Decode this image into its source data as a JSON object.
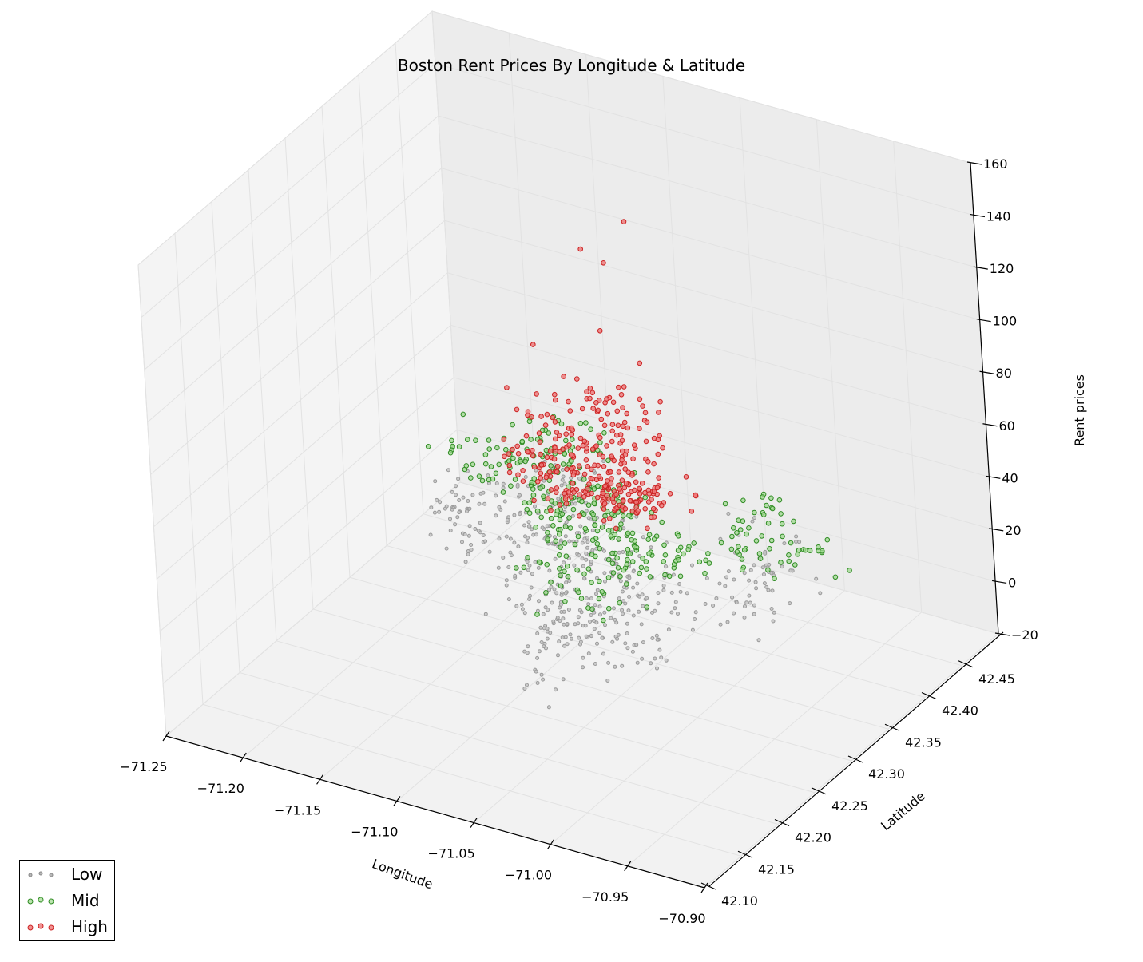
{
  "chart_data": {
    "type": "scatter",
    "projection": "3d",
    "title": "Boston Rent Prices By Longitude & Latitude",
    "xlabel": "Longitude",
    "ylabel": "Latitude",
    "zlabel": "Rent prices",
    "xlim": [
      -71.25,
      -70.9
    ],
    "ylim": [
      42.1,
      42.5
    ],
    "zlim": [
      -20,
      160
    ],
    "x_ticks": [
      "−71.25",
      "−71.20",
      "−71.15",
      "−71.10",
      "−71.05",
      "−71.00",
      "−70.95",
      "−70.90"
    ],
    "y_ticks": [
      "42.10",
      "42.15",
      "42.20",
      "42.25",
      "42.30",
      "42.35",
      "42.40",
      "42.45"
    ],
    "z_ticks": [
      "−20",
      "0",
      "20",
      "40",
      "60",
      "80",
      "100",
      "120",
      "140",
      "160"
    ],
    "grid": true,
    "legend_position": "bottom-left",
    "series": [
      {
        "name": "Low",
        "color": "#b8b8b8",
        "edge": "#808080",
        "z_range": [
          0,
          30
        ],
        "points": [
          [
            -71.12,
            42.36,
            12
          ],
          [
            -71.08,
            42.35,
            15
          ],
          [
            -71.06,
            42.34,
            18
          ],
          [
            -71.1,
            42.33,
            10
          ],
          [
            -71.05,
            42.3,
            8
          ],
          [
            -71.03,
            42.28,
            5
          ],
          [
            -71.15,
            42.38,
            14
          ],
          [
            -71.13,
            42.4,
            20
          ],
          [
            -71.09,
            42.37,
            22
          ],
          [
            -71.02,
            42.32,
            16
          ],
          [
            -70.99,
            42.35,
            12
          ],
          [
            -71.07,
            42.27,
            3
          ],
          [
            -71.04,
            42.25,
            6
          ],
          [
            -71.06,
            42.22,
            4
          ],
          [
            -71.11,
            42.31,
            9
          ],
          [
            -71.16,
            42.35,
            11
          ],
          [
            -71.18,
            42.37,
            13
          ],
          [
            -71.14,
            42.42,
            17
          ],
          [
            -71.0,
            42.4,
            19
          ],
          [
            -71.08,
            42.29,
            7
          ]
        ]
      },
      {
        "name": "Mid",
        "color": "#66bb55",
        "edge": "#2e8b22",
        "z_range": [
          25,
          40
        ],
        "points": [
          [
            -71.12,
            42.36,
            32
          ],
          [
            -71.08,
            42.35,
            35
          ],
          [
            -71.06,
            42.34,
            30
          ],
          [
            -71.1,
            42.33,
            28
          ],
          [
            -71.05,
            42.3,
            27
          ],
          [
            -71.15,
            42.38,
            33
          ],
          [
            -71.13,
            42.4,
            31
          ],
          [
            -71.09,
            42.37,
            36
          ],
          [
            -71.02,
            42.32,
            29
          ],
          [
            -70.99,
            42.35,
            30
          ],
          [
            -71.07,
            42.27,
            26
          ],
          [
            -71.04,
            42.25,
            27
          ],
          [
            -71.18,
            42.37,
            28
          ],
          [
            -71.14,
            42.42,
            30
          ],
          [
            -71.0,
            42.4,
            34
          ],
          [
            -70.96,
            42.38,
            31
          ]
        ]
      },
      {
        "name": "High",
        "color": "#ee4444",
        "edge": "#cc2222",
        "z_range": [
          38,
          150
        ],
        "points": [
          [
            -71.12,
            42.36,
            45
          ],
          [
            -71.08,
            42.35,
            55
          ],
          [
            -71.06,
            42.34,
            60
          ],
          [
            -71.1,
            42.33,
            50
          ],
          [
            -71.09,
            42.37,
            65
          ],
          [
            -71.07,
            42.36,
            80
          ],
          [
            -71.08,
            42.36,
            100
          ],
          [
            -71.07,
            42.35,
            130
          ],
          [
            -71.06,
            42.36,
            145
          ],
          [
            -71.1,
            42.38,
            123
          ],
          [
            -71.13,
            42.37,
            84
          ],
          [
            -71.05,
            42.35,
            95
          ]
        ]
      }
    ]
  }
}
